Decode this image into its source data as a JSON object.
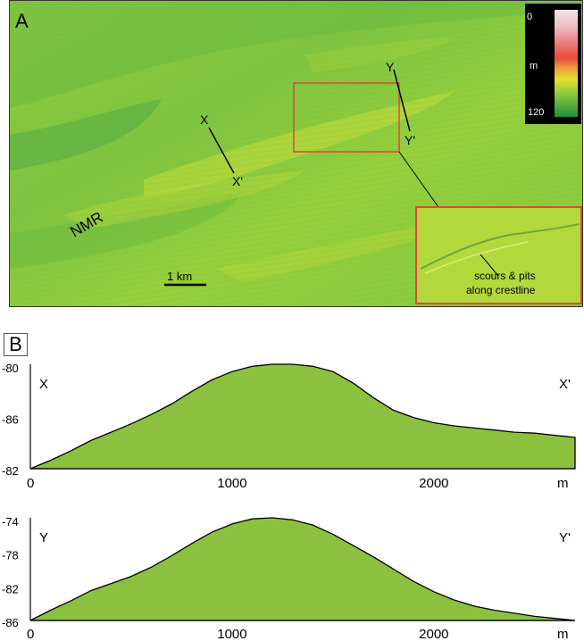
{
  "panel_a": {
    "label": "A",
    "area_label": "NMR",
    "scale_bar": "1 km",
    "legend": {
      "top": "0",
      "unit": "m",
      "bottom": "120"
    },
    "profile_x": {
      "start": "X",
      "end": "X'"
    },
    "profile_y": {
      "start": "Y",
      "end": "Y'"
    },
    "inset_note_line1": "scours & pits",
    "inset_note_line2": "along crestline"
  },
  "panel_b": {
    "label": "B"
  },
  "chart_data": [
    {
      "type": "area",
      "start_label": "X",
      "end_label": "X'",
      "x_unit": "m",
      "xlim": [
        0,
        2700
      ],
      "x_ticks": [
        "0",
        "1000",
        "2000"
      ],
      "y_ticks": [
        "-80",
        "-86",
        "-82"
      ],
      "color": "#8cc13f",
      "x": [
        0,
        100,
        200,
        300,
        400,
        500,
        600,
        700,
        800,
        900,
        1000,
        1100,
        1200,
        1300,
        1400,
        1500,
        1600,
        1700,
        1800,
        1900,
        2000,
        2100,
        2200,
        2300,
        2400,
        2500,
        2600,
        2700
      ],
      "y": [
        0.0,
        0.08,
        0.17,
        0.27,
        0.35,
        0.43,
        0.52,
        0.62,
        0.74,
        0.85,
        0.93,
        0.98,
        1.0,
        1.0,
        0.98,
        0.93,
        0.82,
        0.68,
        0.56,
        0.49,
        0.44,
        0.41,
        0.39,
        0.37,
        0.35,
        0.34,
        0.32,
        0.3
      ]
    },
    {
      "type": "area",
      "start_label": "Y",
      "end_label": "Y'",
      "x_unit": "m",
      "xlim": [
        0,
        2700
      ],
      "x_ticks": [
        "0",
        "1000",
        "2000"
      ],
      "y_ticks": [
        "-74",
        "-78",
        "-82",
        "-86"
      ],
      "color": "#8cc13f",
      "x": [
        0,
        100,
        200,
        300,
        400,
        500,
        600,
        700,
        800,
        900,
        1000,
        1100,
        1200,
        1300,
        1400,
        1500,
        1600,
        1700,
        1800,
        1900,
        2000,
        2100,
        2200,
        2300,
        2400,
        2500,
        2600,
        2700
      ],
      "y": [
        0.0,
        0.1,
        0.19,
        0.29,
        0.36,
        0.43,
        0.52,
        0.63,
        0.75,
        0.86,
        0.94,
        0.99,
        1.0,
        0.98,
        0.93,
        0.84,
        0.73,
        0.62,
        0.5,
        0.38,
        0.28,
        0.2,
        0.14,
        0.1,
        0.07,
        0.04,
        0.02,
        0.0
      ]
    }
  ]
}
